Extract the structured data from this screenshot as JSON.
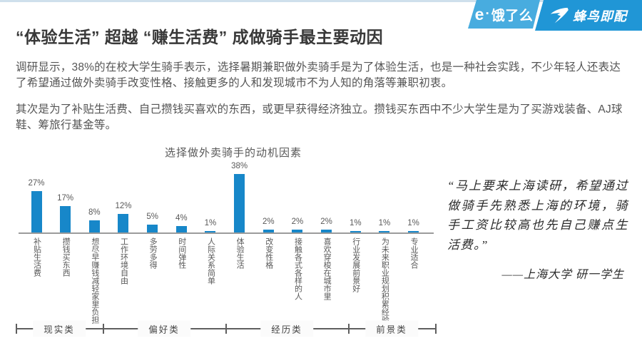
{
  "brand": {
    "eleme_e": "e",
    "eleme_dot": "·",
    "eleme_name": "饿了么",
    "fengniao_name": "蜂鸟即配"
  },
  "header": {
    "title": "“体验生活” 超越 “赚生活费” 成做骑手最主要动因"
  },
  "paragraphs": {
    "p1": "调研显示，38%的在校大学生骑手表示，选择暑期兼职做外卖骑手是为了体验生活，也是一种社会实践，不少年轻人还表达了希望通过做外卖骑手改变性格、接触更多的人和发现城市不为人知的角落等兼职初衷。",
    "p2": "其次是为了补贴生活费、自己攒钱买喜欢的东西，或更早获得经济独立。攒钱买东西中不少大学生是为了买游戏装备、AJ球鞋、筹旅行基金等。"
  },
  "chart_data": {
    "type": "bar",
    "title": "选择做外卖骑手的动机因素",
    "categories": [
      "补贴生活费",
      "攒钱买东西",
      "想尽早赚钱减轻家里负担",
      "工作环境自由",
      "多劳多得",
      "时间弹性",
      "人际关系简单",
      "体验生活",
      "改变性格",
      "接触各式各样的人",
      "喜欢穿梭在城市里",
      "行业发展前景好",
      "为未来职业规划积累经验",
      "专业适合"
    ],
    "values": [
      27,
      17,
      8,
      12,
      5,
      4,
      1,
      38,
      2,
      2,
      2,
      1,
      1,
      1
    ],
    "unit": "%",
    "ylim": [
      0,
      40
    ],
    "grid": false,
    "legend": "none",
    "bar_color": "#1787c9",
    "groups": [
      {
        "label": "现实类",
        "count": 3
      },
      {
        "label": "偏好类",
        "count": 4
      },
      {
        "label": "经历类",
        "count": 4
      },
      {
        "label": "前景类",
        "count": 3
      }
    ]
  },
  "quote": {
    "text": "“马上要来上海读研，希望通过做骑手先熟悉上海的环境，骑手工资比较高也先自己赚点生活费。”",
    "attribution": "——上海大学 研一学生"
  },
  "colors": {
    "bar": "#1787c9",
    "eleme_banner": "#48acdf",
    "fengniao_banner": "#2096d6",
    "top_strip": "#cfe0ec"
  }
}
